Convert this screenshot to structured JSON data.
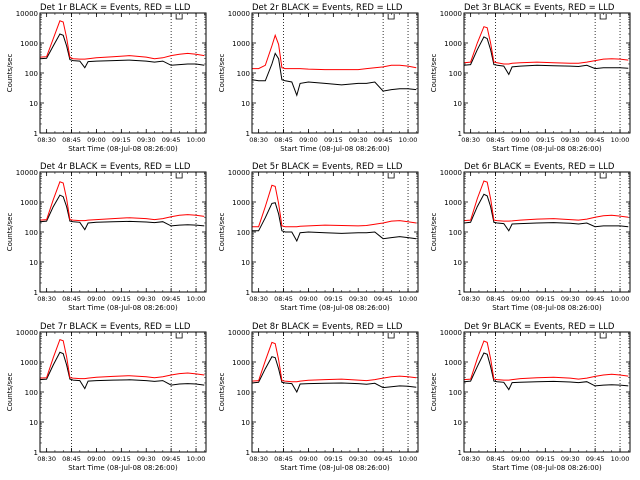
{
  "figure": {
    "xtick_labels": [
      "08:30",
      "08:45",
      "09:00",
      "09:15",
      "09:30",
      "09:45",
      "10:00"
    ],
    "ytick_labels": [
      "1",
      "10",
      "100",
      "1000",
      "10000"
    ],
    "ylabel": "Counts/sec",
    "xlabel": "Start Time (08-Jul-08 08:26:00)",
    "colors": {
      "events": "#000000",
      "lld": "#ff0000",
      "axes": "#000000"
    }
  },
  "chart_data": [
    {
      "type": "line",
      "title": "Det 1r BLACK = Events, RED = LLD",
      "x": [
        "08:26",
        "08:30",
        "08:34",
        "08:38",
        "08:40",
        "08:42",
        "08:44",
        "08:46",
        "08:50",
        "08:53",
        "08:55",
        "09:00",
        "09:10",
        "09:20",
        "09:30",
        "09:35",
        "09:40",
        "09:45",
        "09:50",
        "09:55",
        "10:00",
        "10:05"
      ],
      "series": [
        {
          "name": "Events",
          "values": [
            300,
            310,
            800,
            2000,
            1800,
            800,
            280,
            260,
            250,
            150,
            240,
            250,
            260,
            270,
            250,
            230,
            250,
            180,
            190,
            200,
            200,
            180
          ]
        },
        {
          "name": "LLD",
          "values": [
            340,
            350,
            1400,
            5500,
            5000,
            1500,
            330,
            300,
            290,
            290,
            300,
            320,
            350,
            380,
            340,
            300,
            320,
            380,
            420,
            450,
            420,
            380
          ]
        }
      ],
      "ylim": [
        1,
        10000
      ],
      "yscale": "log",
      "xlim": [
        "08:26",
        "10:06"
      ],
      "vlines": [
        "08:45",
        "09:45",
        "10:00"
      ]
    },
    {
      "type": "line",
      "title": "Det 2r BLACK = Events, RED = LLD",
      "x": [
        "08:26",
        "08:30",
        "08:34",
        "08:38",
        "08:40",
        "08:42",
        "08:44",
        "08:46",
        "08:50",
        "08:53",
        "08:55",
        "09:00",
        "09:10",
        "09:20",
        "09:30",
        "09:35",
        "09:40",
        "09:45",
        "09:50",
        "09:55",
        "10:00",
        "10:05"
      ],
      "series": [
        {
          "name": "Events",
          "values": [
            60,
            55,
            55,
            200,
            450,
            300,
            60,
            55,
            50,
            18,
            45,
            50,
            45,
            40,
            45,
            45,
            50,
            25,
            28,
            30,
            30,
            28
          ]
        },
        {
          "name": "LLD",
          "values": [
            140,
            140,
            180,
            800,
            1800,
            900,
            150,
            140,
            140,
            140,
            140,
            135,
            130,
            130,
            130,
            140,
            150,
            160,
            180,
            180,
            170,
            150
          ]
        }
      ],
      "ylim": [
        1,
        10000
      ],
      "yscale": "log",
      "xlim": [
        "08:26",
        "10:06"
      ],
      "vlines": [
        "08:45",
        "09:45",
        "10:00"
      ]
    },
    {
      "type": "line",
      "title": "Det 3r BLACK = Events, RED = LLD",
      "x": [
        "08:26",
        "08:30",
        "08:34",
        "08:38",
        "08:40",
        "08:42",
        "08:44",
        "08:46",
        "08:50",
        "08:53",
        "08:55",
        "09:00",
        "09:10",
        "09:20",
        "09:30",
        "09:35",
        "09:40",
        "09:45",
        "09:50",
        "09:55",
        "10:00",
        "10:05"
      ],
      "series": [
        {
          "name": "Events",
          "values": [
            180,
            190,
            600,
            1600,
            1400,
            600,
            190,
            180,
            170,
            90,
            160,
            170,
            180,
            175,
            170,
            165,
            180,
            140,
            150,
            150,
            150,
            145
          ]
        },
        {
          "name": "LLD",
          "values": [
            220,
            230,
            1000,
            3500,
            3200,
            1000,
            230,
            220,
            200,
            200,
            210,
            220,
            230,
            220,
            210,
            210,
            230,
            260,
            290,
            300,
            290,
            270
          ]
        }
      ],
      "ylim": [
        1,
        10000
      ],
      "yscale": "log",
      "xlim": [
        "08:26",
        "10:06"
      ],
      "vlines": [
        "08:45",
        "09:45",
        "10:00"
      ]
    },
    {
      "type": "line",
      "title": "Det 4r BLACK = Events, RED = LLD",
      "x": [
        "08:26",
        "08:30",
        "08:34",
        "08:38",
        "08:40",
        "08:42",
        "08:44",
        "08:46",
        "08:50",
        "08:53",
        "08:55",
        "09:00",
        "09:10",
        "09:20",
        "09:30",
        "09:35",
        "09:40",
        "09:45",
        "09:50",
        "09:55",
        "10:00",
        "10:05"
      ],
      "series": [
        {
          "name": "Events",
          "values": [
            220,
            230,
            700,
            1700,
            1500,
            700,
            230,
            220,
            210,
            120,
            200,
            210,
            220,
            225,
            215,
            205,
            220,
            160,
            170,
            175,
            170,
            160
          ]
        },
        {
          "name": "LLD",
          "values": [
            250,
            260,
            1200,
            4700,
            4300,
            1300,
            260,
            250,
            240,
            240,
            250,
            260,
            280,
            300,
            280,
            260,
            280,
            320,
            360,
            380,
            360,
            330
          ]
        }
      ],
      "ylim": [
        1,
        10000
      ],
      "yscale": "log",
      "xlim": [
        "08:26",
        "10:06"
      ],
      "vlines": [
        "08:45",
        "09:45",
        "10:00"
      ]
    },
    {
      "type": "line",
      "title": "Det 5r BLACK = Events, RED = LLD",
      "x": [
        "08:26",
        "08:30",
        "08:34",
        "08:38",
        "08:40",
        "08:42",
        "08:44",
        "08:46",
        "08:50",
        "08:53",
        "08:55",
        "09:00",
        "09:10",
        "09:20",
        "09:30",
        "09:35",
        "09:40",
        "09:45",
        "09:50",
        "09:55",
        "10:00",
        "10:05"
      ],
      "series": [
        {
          "name": "Events",
          "values": [
            110,
            110,
            300,
            900,
            950,
            400,
            110,
            100,
            100,
            50,
            95,
            100,
            95,
            90,
            95,
            95,
            100,
            60,
            65,
            70,
            65,
            60
          ]
        },
        {
          "name": "LLD",
          "values": [
            150,
            150,
            700,
            3600,
            3300,
            900,
            160,
            150,
            150,
            150,
            155,
            160,
            170,
            165,
            160,
            165,
            180,
            200,
            230,
            240,
            220,
            200
          ]
        }
      ],
      "ylim": [
        1,
        10000
      ],
      "yscale": "log",
      "xlim": [
        "08:26",
        "10:06"
      ],
      "vlines": [
        "08:45",
        "09:45",
        "10:00"
      ]
    },
    {
      "type": "line",
      "title": "Det 6r BLACK = Events, RED = LLD",
      "x": [
        "08:26",
        "08:30",
        "08:34",
        "08:38",
        "08:40",
        "08:42",
        "08:44",
        "08:46",
        "08:50",
        "08:53",
        "08:55",
        "09:00",
        "09:10",
        "09:20",
        "09:30",
        "09:35",
        "09:40",
        "09:45",
        "09:50",
        "09:55",
        "10:00",
        "10:05"
      ],
      "series": [
        {
          "name": "Events",
          "values": [
            200,
            210,
            700,
            1800,
            1600,
            700,
            210,
            200,
            190,
            110,
            185,
            190,
            200,
            205,
            195,
            185,
            200,
            150,
            160,
            160,
            160,
            150
          ]
        },
        {
          "name": "LLD",
          "values": [
            240,
            250,
            1300,
            5000,
            4600,
            1300,
            250,
            240,
            230,
            230,
            235,
            250,
            270,
            280,
            260,
            250,
            270,
            310,
            350,
            360,
            340,
            310
          ]
        }
      ],
      "ylim": [
        1,
        10000
      ],
      "yscale": "log",
      "xlim": [
        "08:26",
        "10:06"
      ],
      "vlines": [
        "08:45",
        "09:45",
        "10:00"
      ]
    },
    {
      "type": "line",
      "title": "Det 7r BLACK = Events, RED = LLD",
      "x": [
        "08:26",
        "08:30",
        "08:34",
        "08:38",
        "08:40",
        "08:42",
        "08:44",
        "08:46",
        "08:50",
        "08:53",
        "08:55",
        "09:00",
        "09:10",
        "09:20",
        "09:30",
        "09:35",
        "09:40",
        "09:45",
        "09:50",
        "09:55",
        "10:00",
        "10:05"
      ],
      "series": [
        {
          "name": "Events",
          "values": [
            260,
            270,
            800,
            2100,
            1900,
            800,
            270,
            250,
            240,
            130,
            230,
            240,
            250,
            255,
            240,
            225,
            240,
            170,
            185,
            190,
            185,
            170
          ]
        },
        {
          "name": "LLD",
          "values": [
            290,
            300,
            1400,
            5600,
            5100,
            1500,
            300,
            290,
            280,
            280,
            290,
            310,
            330,
            350,
            320,
            300,
            320,
            370,
            410,
            430,
            400,
            370
          ]
        }
      ],
      "ylim": [
        1,
        10000
      ],
      "yscale": "log",
      "xlim": [
        "08:26",
        "10:06"
      ],
      "vlines": [
        "08:45",
        "09:45",
        "10:00"
      ]
    },
    {
      "type": "line",
      "title": "Det 8r BLACK = Events, RED = LLD",
      "x": [
        "08:26",
        "08:30",
        "08:34",
        "08:38",
        "08:40",
        "08:42",
        "08:44",
        "08:46",
        "08:50",
        "08:53",
        "08:55",
        "09:00",
        "09:10",
        "09:20",
        "09:30",
        "09:35",
        "09:40",
        "09:45",
        "09:50",
        "09:55",
        "10:00",
        "10:05"
      ],
      "series": [
        {
          "name": "Events",
          "values": [
            200,
            210,
            600,
            1500,
            1400,
            600,
            210,
            200,
            190,
            100,
            185,
            190,
            195,
            200,
            190,
            180,
            195,
            140,
            150,
            160,
            155,
            145
          ]
        },
        {
          "name": "LLD",
          "values": [
            230,
            240,
            1100,
            4500,
            4100,
            1200,
            240,
            230,
            220,
            220,
            230,
            245,
            260,
            270,
            250,
            240,
            260,
            290,
            320,
            340,
            320,
            300
          ]
        }
      ],
      "ylim": [
        1,
        10000
      ],
      "yscale": "log",
      "xlim": [
        "08:26",
        "10:06"
      ],
      "vlines": [
        "08:45",
        "09:45",
        "10:00"
      ]
    },
    {
      "type": "line",
      "title": "Det 9r BLACK = Events, RED = LLD",
      "x": [
        "08:26",
        "08:30",
        "08:34",
        "08:38",
        "08:40",
        "08:42",
        "08:44",
        "08:46",
        "08:50",
        "08:53",
        "08:55",
        "09:00",
        "09:10",
        "09:20",
        "09:30",
        "09:35",
        "09:40",
        "09:45",
        "09:50",
        "09:55",
        "10:00",
        "10:05"
      ],
      "series": [
        {
          "name": "Events",
          "values": [
            220,
            230,
            700,
            2000,
            1800,
            700,
            230,
            220,
            210,
            120,
            205,
            210,
            220,
            225,
            215,
            205,
            220,
            160,
            170,
            175,
            170,
            160
          ]
        },
        {
          "name": "LLD",
          "values": [
            260,
            270,
            1300,
            5000,
            4500,
            1300,
            270,
            260,
            250,
            250,
            260,
            280,
            300,
            310,
            290,
            270,
            290,
            330,
            370,
            390,
            370,
            340
          ]
        }
      ],
      "ylim": [
        1,
        10000
      ],
      "yscale": "log",
      "xlim": [
        "08:26",
        "10:06"
      ],
      "vlines": [
        "08:45",
        "09:45",
        "10:00"
      ]
    }
  ]
}
